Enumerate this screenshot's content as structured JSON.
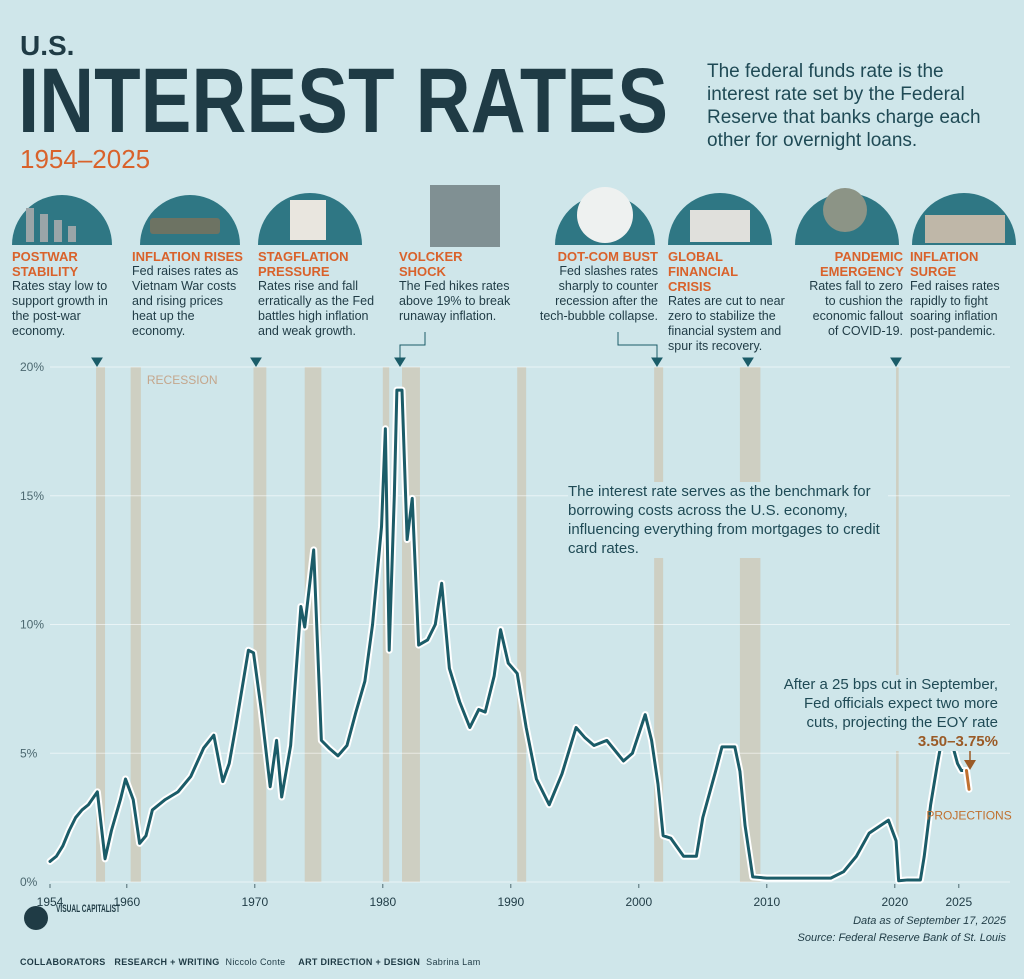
{
  "header": {
    "kicker": "U.S.",
    "title": "INTEREST RATES",
    "years": "1954–2025",
    "description": "The federal funds rate is the interest rate set by the Federal Reserve that banks charge each other for overnight loans."
  },
  "events": [
    {
      "title": "POSTWAR STABILITY",
      "text": "Rates stay low to support growth in the post-war economy."
    },
    {
      "title": "INFLATION RISES",
      "text": "Fed raises rates as Vietnam War costs and rising prices heat up the economy."
    },
    {
      "title": "STAGFLATION PRESSURE",
      "text": "Rates rise and fall erratically as the Fed battles high inflation and weak growth."
    },
    {
      "title": "VOLCKER SHOCK",
      "text": "The Fed hikes rates above 19% to break runaway inflation."
    },
    {
      "title": "DOT-COM BUST",
      "text": "Fed slashes rates sharply to counter recession after the tech-bubble collapse."
    },
    {
      "title": "GLOBAL FINANCIAL CRISIS",
      "text": "Rates are cut to near zero to stabilize the financial system and spur its recovery."
    },
    {
      "title": "PANDEMIC EMERGENCY",
      "text": "Rates fall to zero to cushion the economic fallout of COVID-19."
    },
    {
      "title": "INFLATION SURGE",
      "text": "Fed raises rates rapidly to fight soaring inflation post-pandemic."
    }
  ],
  "chart_data": {
    "type": "line",
    "xlim": [
      1954,
      2029
    ],
    "ylim": [
      0,
      20
    ],
    "xticks": [
      1954,
      1960,
      1970,
      1980,
      1990,
      2000,
      2010,
      2020,
      2025
    ],
    "yticks": [
      {
        "value": 0,
        "label": "0%"
      },
      {
        "value": 5,
        "label": "5%"
      },
      {
        "value": 10,
        "label": "10%"
      },
      {
        "value": 15,
        "label": "15%"
      },
      {
        "value": 20,
        "label": "20%"
      }
    ],
    "grid": true,
    "recession_label": "RECESSION",
    "recession_color": "#cdc7b4",
    "recessions": [
      [
        1957.6,
        1958.3
      ],
      [
        1960.3,
        1961.1
      ],
      [
        1969.9,
        1970.9
      ],
      [
        1973.9,
        1975.2
      ],
      [
        1980.0,
        1980.5
      ],
      [
        1981.5,
        1982.9
      ],
      [
        1990.5,
        1991.2
      ],
      [
        2001.2,
        2001.9
      ],
      [
        2007.9,
        2009.5
      ],
      [
        2020.1,
        2020.3
      ]
    ],
    "series": [
      {
        "color": "#1b5c68",
        "x": [
          1954,
          1954.5,
          1955,
          1955.5,
          1956,
          1956.5,
          1957,
          1957.7,
          1958.3,
          1958.8,
          1959.5,
          1959.9,
          1960.5,
          1961,
          1961.5,
          1962,
          1963,
          1964,
          1965,
          1966,
          1966.8,
          1967.5,
          1968,
          1968.5,
          1969.5,
          1969.9,
          1970.5,
          1971.2,
          1971.7,
          1972.1,
          1972.8,
          1973.6,
          1973.9,
          1974.6,
          1975.2,
          1975.8,
          1976.5,
          1977.2,
          1977.9,
          1978.6,
          1979.2,
          1979.9,
          1980.2,
          1980.5,
          1980.9,
          1981.1,
          1981.5,
          1981.9,
          1982.3,
          1982.8,
          1983.5,
          1984.1,
          1984.6,
          1985.2,
          1986,
          1986.8,
          1987.5,
          1988,
          1988.7,
          1989.2,
          1989.8,
          1990.5,
          1991.2,
          1992,
          1993,
          1994,
          1995.1,
          1995.8,
          1996.5,
          1997.5,
          1998.8,
          1999.5,
          2000.5,
          2001,
          2001.5,
          2001.9,
          2002.5,
          2003.5,
          2004.5,
          2005,
          2006,
          2006.5,
          2007.5,
          2007.9,
          2008.3,
          2008.9,
          2010,
          2015,
          2016,
          2017,
          2018,
          2019.5,
          2020.1,
          2020.3,
          2021,
          2022,
          2022.3,
          2022.8,
          2023.3,
          2023.6,
          2024.5,
          2024.9,
          2025.2,
          2025.6
        ],
        "values": [
          0.8,
          1.0,
          1.4,
          2.0,
          2.5,
          2.8,
          3.0,
          3.5,
          0.9,
          2.0,
          3.2,
          4.0,
          3.2,
          1.5,
          1.8,
          2.8,
          3.2,
          3.5,
          4.1,
          5.2,
          5.7,
          3.9,
          4.6,
          6.0,
          9.0,
          8.9,
          6.7,
          3.7,
          5.5,
          3.3,
          5.3,
          10.7,
          9.9,
          12.9,
          5.5,
          5.2,
          4.9,
          5.3,
          6.6,
          7.8,
          10.0,
          13.8,
          17.6,
          9.0,
          15.0,
          19.1,
          19.1,
          13.3,
          14.9,
          9.2,
          9.4,
          10.0,
          11.6,
          8.3,
          7.0,
          6.0,
          6.7,
          6.6,
          8.0,
          9.8,
          8.5,
          8.1,
          6.0,
          4.0,
          3.0,
          4.2,
          6.0,
          5.6,
          5.3,
          5.5,
          4.7,
          5.0,
          6.5,
          5.5,
          3.8,
          1.8,
          1.7,
          1.0,
          1.0,
          2.5,
          4.3,
          5.25,
          5.25,
          4.3,
          2.2,
          0.2,
          0.15,
          0.15,
          0.4,
          1.0,
          1.9,
          2.4,
          1.6,
          0.05,
          0.08,
          0.08,
          1.0,
          3.0,
          4.5,
          5.33,
          5.33,
          4.6,
          4.33,
          4.33
        ]
      },
      {
        "name": "PROJECTIONS",
        "color": "#c0702f",
        "x": [
          2025.6,
          2025.8
        ],
        "values": [
          4.33,
          3.6
        ]
      }
    ],
    "annotations": [
      {
        "text": "The interest rate serves as the benchmark for borrowing costs across the U.S. economy, influencing everything from mortgages to credit card rates."
      },
      {
        "text": "After a 25 bps cut in September, Fed officials expect two more cuts, projecting the EOY rate",
        "highlight": "3.50–3.75%"
      }
    ]
  },
  "footer": {
    "data_note": "Data as of September 17, 2025",
    "source": "Source: Federal Reserve Bank of St. Louis",
    "brand": "VISUAL CAPITALIST",
    "collaborators": "COLLABORATORS",
    "research_role": "RESEARCH + WRITING",
    "research_name": "Niccolo Conte",
    "design_role": "ART DIRECTION + DESIGN",
    "design_name": "Sabrina Lam"
  }
}
